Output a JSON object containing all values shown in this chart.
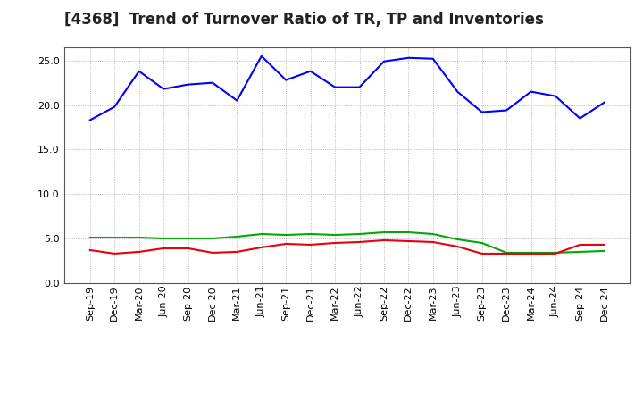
{
  "title": "[4368]  Trend of Turnover Ratio of TR, TP and Inventories",
  "labels": [
    "Sep-19",
    "Dec-19",
    "Mar-20",
    "Jun-20",
    "Sep-20",
    "Dec-20",
    "Mar-21",
    "Jun-21",
    "Sep-21",
    "Dec-21",
    "Mar-22",
    "Jun-22",
    "Sep-22",
    "Dec-22",
    "Mar-23",
    "Jun-23",
    "Sep-23",
    "Dec-23",
    "Mar-24",
    "Jun-24",
    "Sep-24",
    "Dec-24"
  ],
  "trade_receivables": [
    3.7,
    3.3,
    3.5,
    3.9,
    3.9,
    3.4,
    3.5,
    4.0,
    4.4,
    4.3,
    4.5,
    4.6,
    4.8,
    4.7,
    4.6,
    4.1,
    3.3,
    3.3,
    3.3,
    3.3,
    4.3,
    4.3
  ],
  "trade_payables": [
    18.3,
    19.8,
    23.8,
    21.8,
    22.3,
    22.5,
    20.5,
    25.5,
    22.8,
    23.8,
    22.0,
    22.0,
    24.9,
    25.3,
    25.2,
    21.5,
    19.2,
    19.4,
    21.5,
    21.0,
    18.5,
    20.3
  ],
  "inventories": [
    5.1,
    5.1,
    5.1,
    5.0,
    5.0,
    5.0,
    5.2,
    5.5,
    5.4,
    5.5,
    5.4,
    5.5,
    5.7,
    5.7,
    5.5,
    4.9,
    4.5,
    3.4,
    3.4,
    3.4,
    3.5,
    3.6
  ],
  "tr_color": "#e8000d",
  "tp_color": "#0000ff",
  "inv_color": "#00aa00",
  "ylim": [
    0.0,
    26.5
  ],
  "yticks": [
    0.0,
    5.0,
    10.0,
    15.0,
    20.0,
    25.0
  ],
  "background_color": "#ffffff",
  "plot_bg_color": "#ffffff",
  "grid_color": "#888888",
  "title_fontsize": 12,
  "legend_fontsize": 9.5,
  "tick_fontsize": 8
}
